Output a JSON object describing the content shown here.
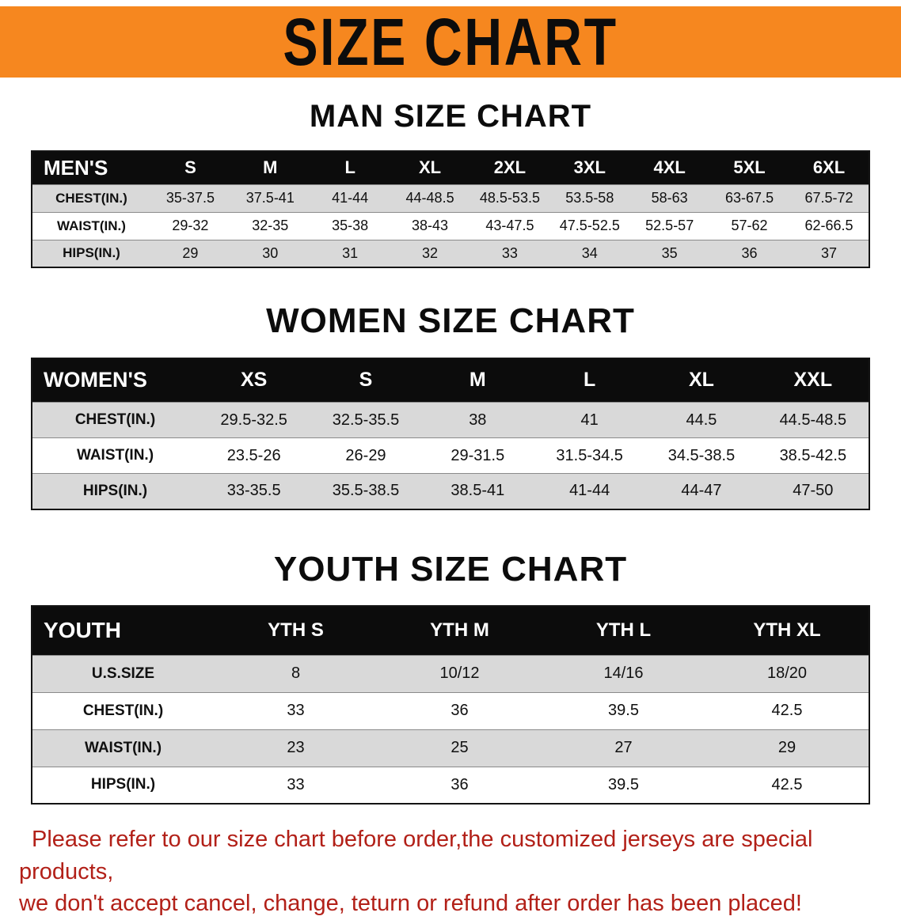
{
  "banner": {
    "title": "SIZE CHART"
  },
  "colors": {
    "banner_bg": "#f6871f",
    "table_header_bg": "#0c0c0c",
    "row_stripe_bg": "#d9d9d9",
    "disclaimer_red": "#b22018"
  },
  "sections": [
    {
      "heading": "MAN SIZE CHART",
      "table": {
        "header": [
          "MEN'S",
          "S",
          "M",
          "L",
          "XL",
          "2XL",
          "3XL",
          "4XL",
          "5XL",
          "6XL"
        ],
        "rows": [
          [
            "CHEST(IN.)",
            "35-37.5",
            "37.5-41",
            "41-44",
            "44-48.5",
            "48.5-53.5",
            "53.5-58",
            "58-63",
            "63-67.5",
            "67.5-72"
          ],
          [
            "WAIST(IN.)",
            "29-32",
            "32-35",
            "35-38",
            "38-43",
            "43-47.5",
            "47.5-52.5",
            "52.5-57",
            "57-62",
            "62-66.5"
          ],
          [
            "HIPS(IN.)",
            "29",
            "30",
            "31",
            "32",
            "33",
            "34",
            "35",
            "36",
            "37"
          ]
        ]
      }
    },
    {
      "heading": "WOMEN SIZE CHART",
      "table": {
        "header": [
          "WOMEN'S",
          "XS",
          "S",
          "M",
          "L",
          "XL",
          "XXL"
        ],
        "rows": [
          [
            "CHEST(IN.)",
            "29.5-32.5",
            "32.5-35.5",
            "38",
            "41",
            "44.5",
            "44.5-48.5"
          ],
          [
            "WAIST(IN.)",
            "23.5-26",
            "26-29",
            "29-31.5",
            "31.5-34.5",
            "34.5-38.5",
            "38.5-42.5"
          ],
          [
            "HIPS(IN.)",
            "33-35.5",
            "35.5-38.5",
            "38.5-41",
            "41-44",
            "44-47",
            "47-50"
          ]
        ]
      }
    },
    {
      "heading": "YOUTH SIZE CHART",
      "table": {
        "header": [
          "YOUTH",
          "YTH S",
          "YTH M",
          "YTH L",
          "YTH XL"
        ],
        "rows": [
          [
            "U.S.SIZE",
            "8",
            "10/12",
            "14/16",
            "18/20"
          ],
          [
            "CHEST(IN.)",
            "33",
            "36",
            "39.5",
            "42.5"
          ],
          [
            "WAIST(IN.)",
            "23",
            "25",
            "27",
            "29"
          ],
          [
            "HIPS(IN.)",
            "33",
            "36",
            "39.5",
            "42.5"
          ]
        ]
      }
    }
  ],
  "disclaimer": {
    "line1": "Please refer to our size chart before order,the customized jerseys are special products,",
    "line2": "we don't accept cancel, change, teturn or refund after order has been placed!"
  }
}
